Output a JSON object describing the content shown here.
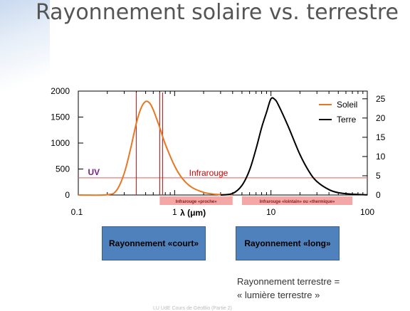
{
  "slide": {
    "title": "Rayonnement solaire vs. terrestre",
    "box_short": "Rayonnement «court»",
    "box_long": "Rayonnement «long»",
    "caption_line1": "Rayonnement terrestre =",
    "caption_line2": "« lumière terrestre »",
    "footer": "LU UdE Cours de GéoBio (Partie 2)"
  },
  "colors": {
    "sun": "#e87722",
    "earth": "#000000",
    "region_line": "#e85a5a",
    "uv": "#7a1f8c",
    "infrared": "#cc0000",
    "band_fill": "#f4a7a7",
    "box_fill": "#4f81bd"
  },
  "chart_data": {
    "type": "line",
    "x_scale": "log",
    "xlim": [
      0.1,
      100
    ],
    "x_ticks": [
      "0.1",
      "1",
      "10",
      "100"
    ],
    "xlabel": "λ (μm)",
    "y_left_ticks": [
      "0",
      "500",
      "1000",
      "1500",
      "2000"
    ],
    "y_left_lim": [
      0,
      2000
    ],
    "y_right_ticks": [
      "0",
      "5",
      "10",
      "15",
      "20",
      "25"
    ],
    "y_right_lim": [
      0,
      27
    ],
    "legend": {
      "position": "top-right",
      "entries": [
        "Soleil",
        "Terre"
      ]
    },
    "series": [
      {
        "name": "Soleil",
        "axis": "left",
        "x": [
          0.1,
          0.2,
          0.25,
          0.3,
          0.35,
          0.4,
          0.45,
          0.5,
          0.55,
          0.6,
          0.7,
          0.8,
          1.0,
          1.2,
          1.5,
          2.0,
          2.5,
          3.0,
          4.0
        ],
        "y": [
          0,
          5,
          90,
          420,
          900,
          1380,
          1680,
          1800,
          1770,
          1640,
          1300,
          980,
          560,
          320,
          150,
          50,
          18,
          8,
          2
        ]
      },
      {
        "name": "Terre",
        "axis": "right",
        "x": [
          3.0,
          4.0,
          5.0,
          6.0,
          7.0,
          8.0,
          9.0,
          10.0,
          11.0,
          12.0,
          15.0,
          20.0,
          25.0,
          30.0,
          40.0,
          50.0,
          70.0,
          100.0
        ],
        "y": [
          0,
          0.4,
          2.5,
          6.5,
          12.0,
          17.5,
          21.5,
          25.0,
          24.8,
          23.3,
          18.0,
          10.5,
          6.0,
          3.5,
          1.4,
          0.6,
          0.2,
          0.05
        ]
      }
    ],
    "annotations": {
      "uv": "UV",
      "infrared": "Infrarouge",
      "near_ir": "Infrarouge «proche»",
      "far_ir": "Infrarouge «lointain» ou «thermique»"
    },
    "boundaries_um": [
      0.4,
      0.7,
      0.75
    ],
    "band_near_um": [
      0.7,
      4
    ],
    "band_far_um": [
      5,
      70
    ]
  }
}
